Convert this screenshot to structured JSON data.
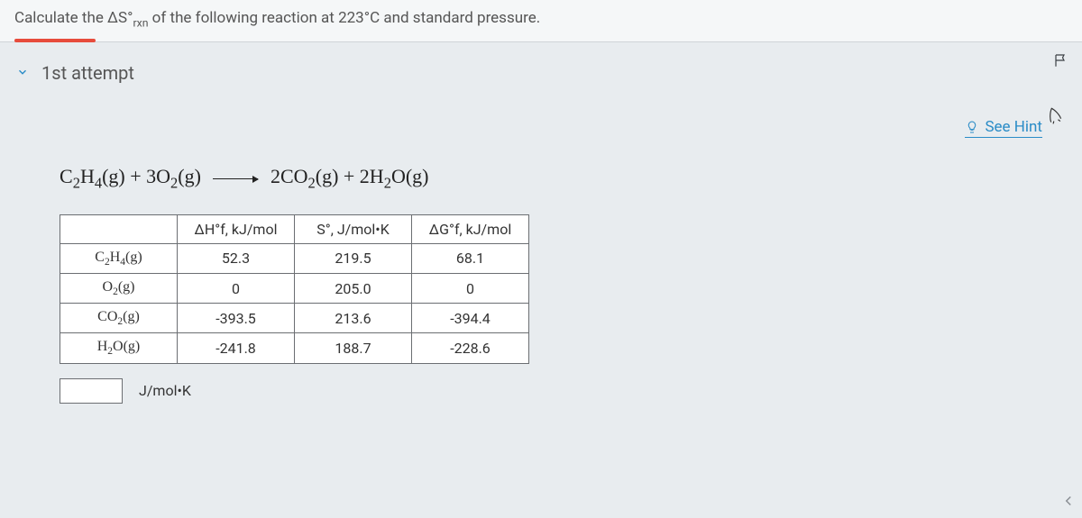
{
  "question": {
    "prompt_html": "Calculate the ΔS°<sub>rxn</sub> of the following reaction at 223°C and standard pressure."
  },
  "attempt": {
    "label": "1st attempt"
  },
  "hint": {
    "label": "See Hint"
  },
  "equation_html": "C<sub>2</sub>H<sub>4</sub>(g) + 3O<sub>2</sub>(g) <span class=\"arrow\"></span> 2CO<sub>2</sub>(g) + 2H<sub>2</sub>O(g)",
  "table": {
    "headers": [
      "ΔH°f, kJ/mol",
      "S°, J/mol•K",
      "ΔG°f, kJ/mol"
    ],
    "rows": [
      {
        "species_html": "C<sub>2</sub>H<sub>4</sub>(g)",
        "dh": "52.3",
        "s": "219.5",
        "dg": "68.1"
      },
      {
        "species_html": "O<sub>2</sub>(g)",
        "dh": "0",
        "s": "205.0",
        "dg": "0"
      },
      {
        "species_html": "CO<sub>2</sub>(g)",
        "dh": "-393.5",
        "s": "213.6",
        "dg": "-394.4"
      },
      {
        "species_html": "H<sub>2</sub>O(g)",
        "dh": "-241.8",
        "s": "188.7",
        "dg": "-228.6"
      }
    ]
  },
  "answer": {
    "value": "",
    "unit": "J/mol•K"
  },
  "colors": {
    "accent": "#2a8cc7",
    "progress": "#e74c3c",
    "border": "#6b6e72",
    "bg": "#e8ecef"
  }
}
